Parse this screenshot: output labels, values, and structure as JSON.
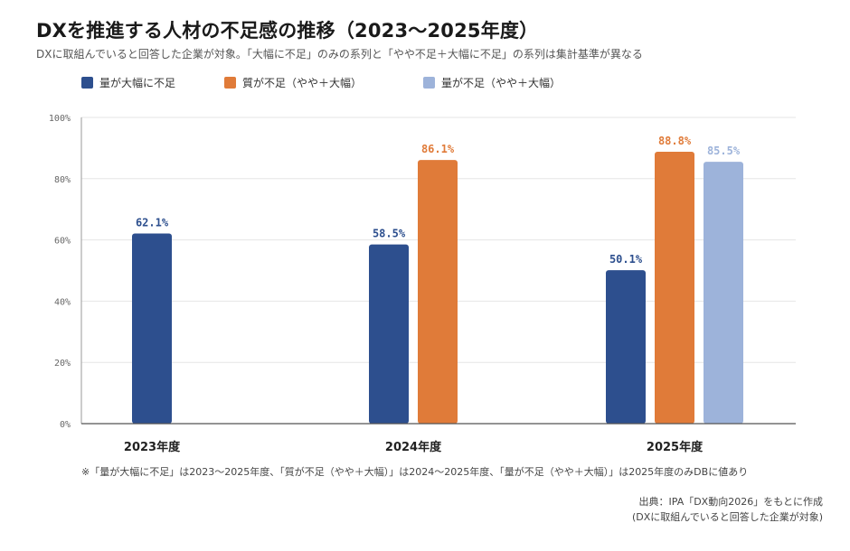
{
  "title": "DXを推進する人材の不足感の推移（2023〜2025年度）",
  "subtitle": "DXに取組んでいると回答した企業が対象。「大幅に不足」のみの系列と「やや不足＋大幅に不足」の系列は集計基準が異なる",
  "note": "※「量が大幅に不足」は2023〜2025年度、「質が不足（やや＋大幅）」は2024〜2025年度、「量が不足（やや＋大幅）」は2025年度のみDBに値あり",
  "source": {
    "line1": "出典：IPA「DX動向2026」をもとに作成",
    "line2": "(DXに取組んでいると回答した企業が対象)"
  },
  "chart_data": {
    "type": "bar",
    "categories": [
      "2023年度",
      "2024年度",
      "2025年度"
    ],
    "series": [
      {
        "name": "量が大幅に不足",
        "color": "#2d4f8e",
        "values": [
          62.1,
          58.5,
          50.1
        ],
        "labels": [
          "62.1%",
          "58.5%",
          "50.1%"
        ]
      },
      {
        "name": "質が不足（やや＋大幅）",
        "color": "#e07b39",
        "values": [
          null,
          86.1,
          88.8
        ],
        "labels": [
          null,
          "86.1%",
          "88.8%"
        ]
      },
      {
        "name": "量が不足（やや＋大幅）",
        "color": "#9db3da",
        "values": [
          null,
          null,
          85.5
        ],
        "labels": [
          null,
          null,
          "85.5%"
        ]
      }
    ],
    "ylim": [
      0,
      100
    ],
    "yticks": [
      0,
      20,
      40,
      60,
      80,
      100
    ],
    "ytick_labels": [
      "0%",
      "20%",
      "40%",
      "60%",
      "80%",
      "100%"
    ],
    "grid": true,
    "legend_position": "top-left"
  }
}
